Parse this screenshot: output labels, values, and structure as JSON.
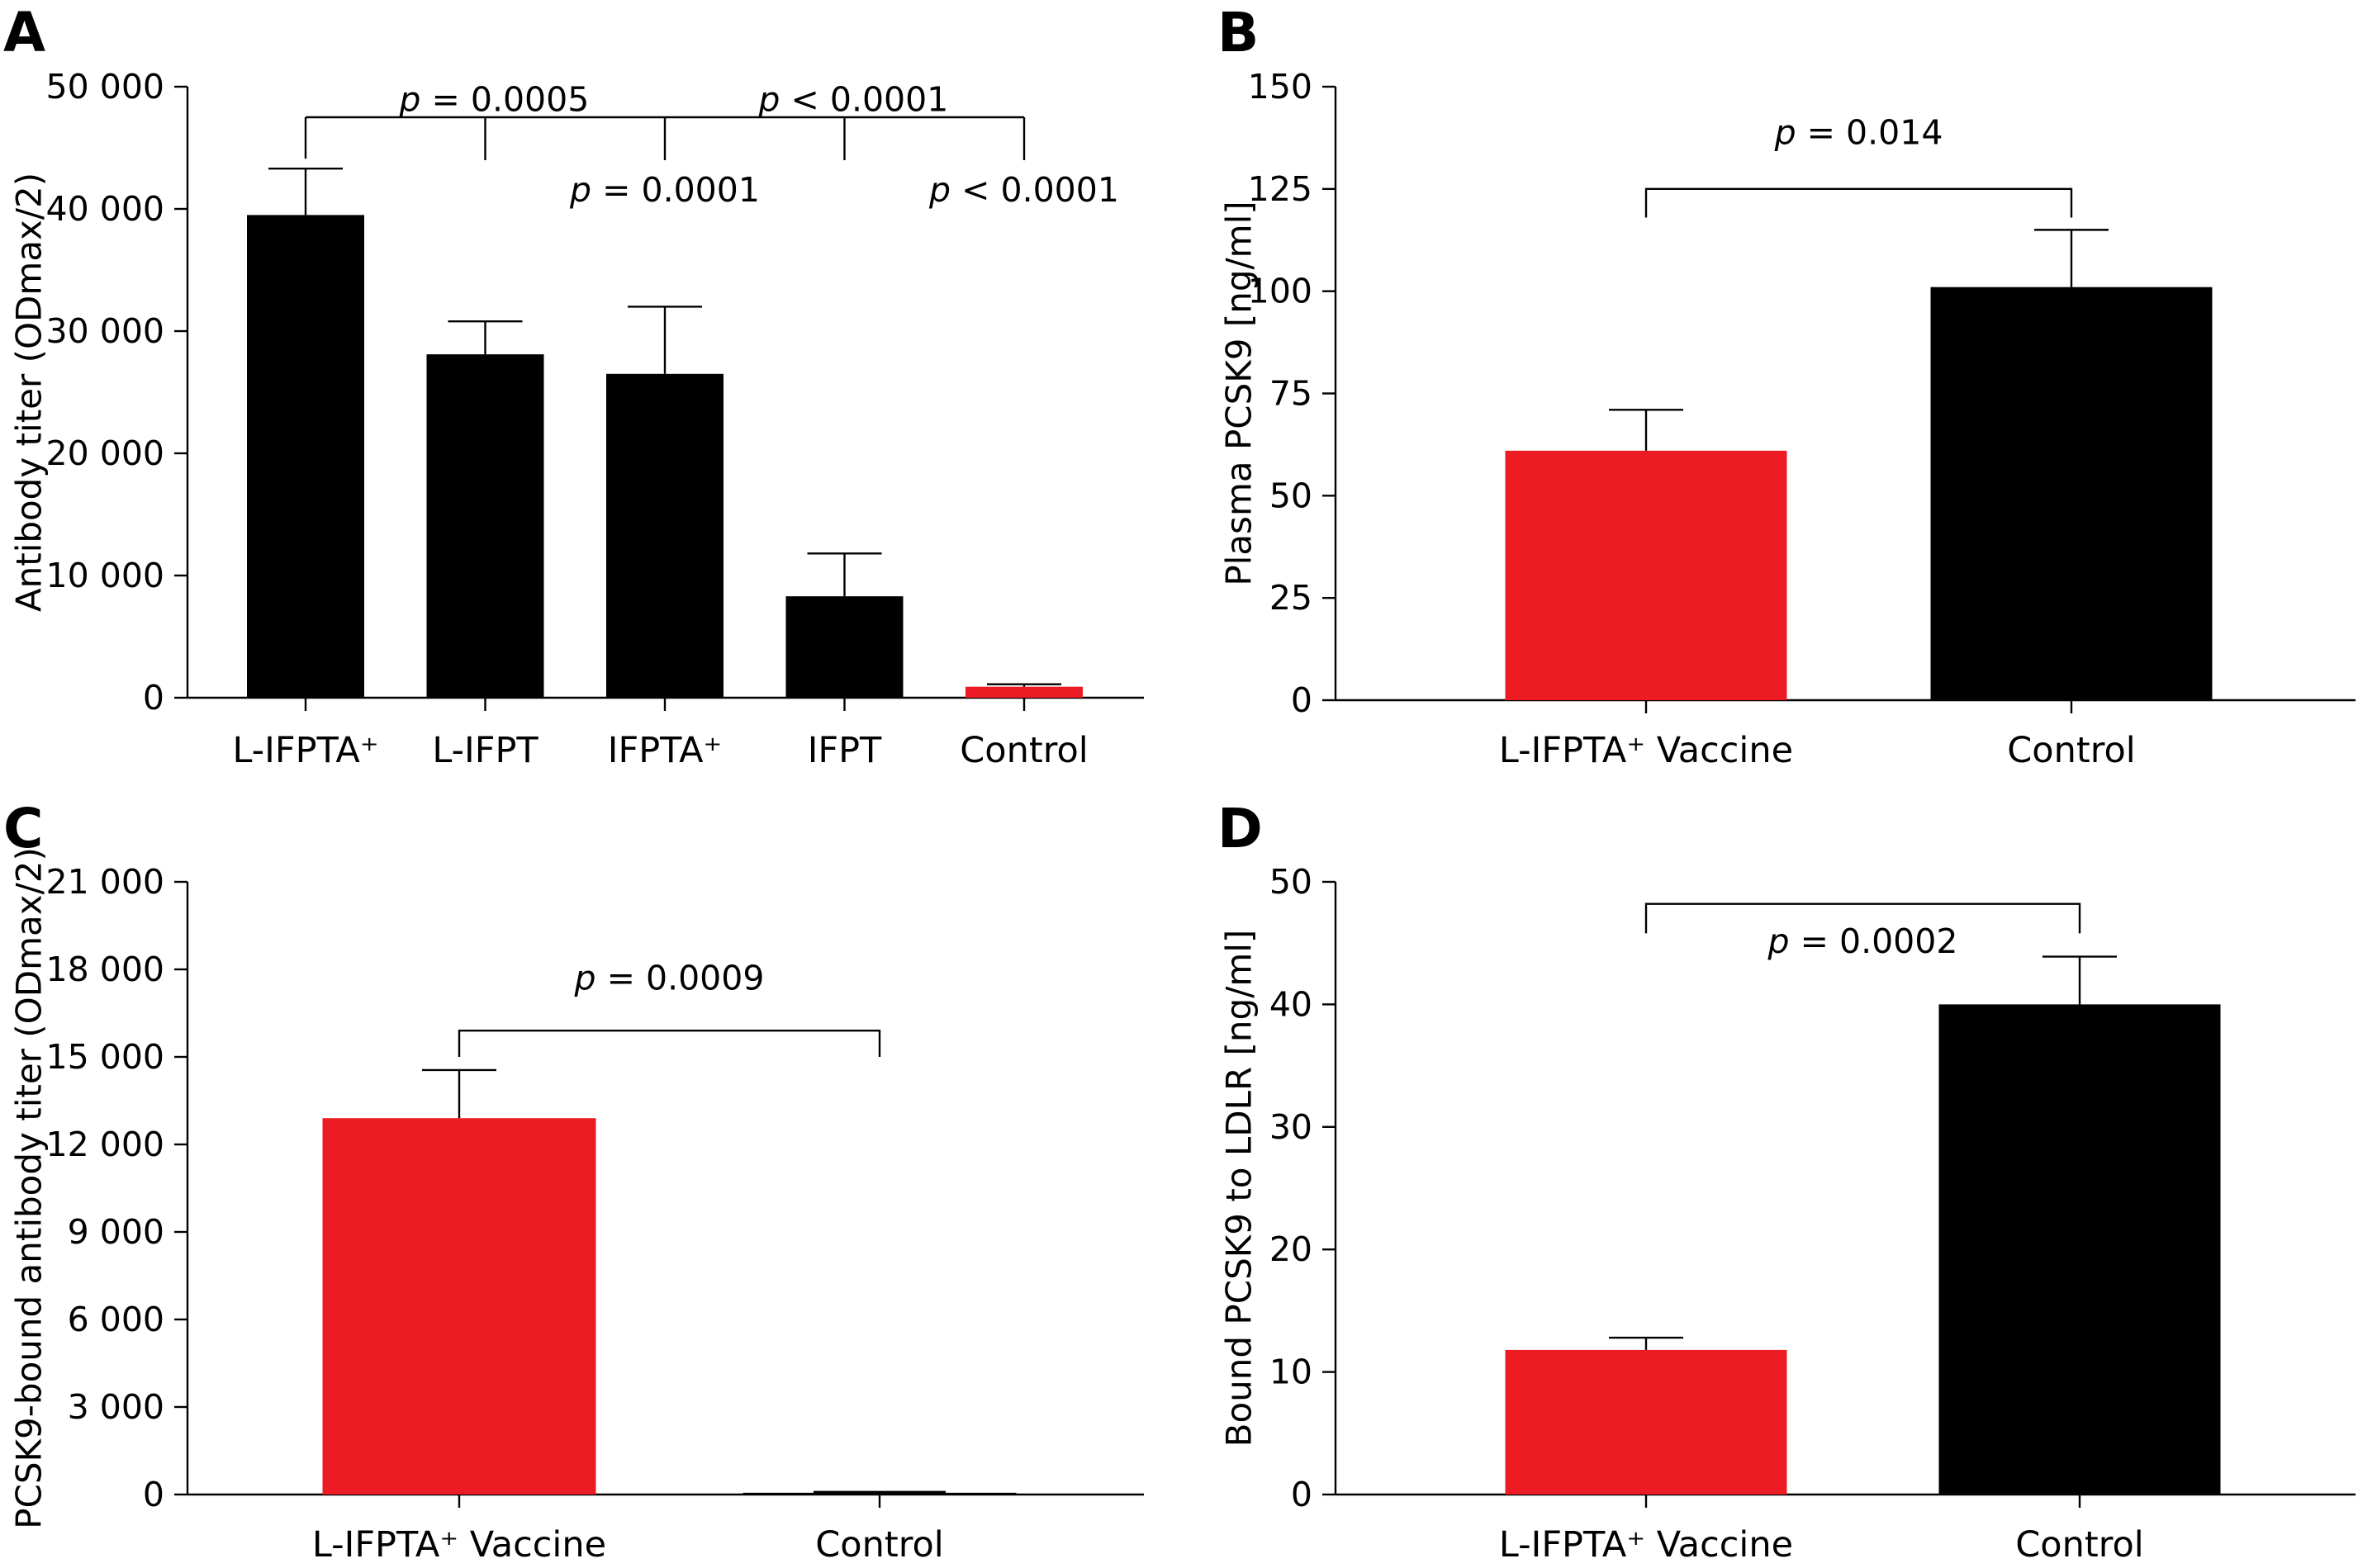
{
  "chart_data": [
    {
      "panel": "A",
      "type": "bar",
      "categories": [
        "L-IFPTA⁺",
        "L-IFPT",
        "IFPTA⁺",
        "IFPT",
        "Control"
      ],
      "values": [
        39500,
        28100,
        26500,
        8300,
        900
      ],
      "errors": [
        3800,
        2700,
        5500,
        3500,
        200
      ],
      "colors": [
        "#000000",
        "#000000",
        "#000000",
        "#000000",
        "#ed1c24"
      ],
      "ylabel": "Antibody titer (ODmax/2)",
      "ylim": [
        0,
        50000
      ],
      "yticks": [
        0,
        10000,
        20000,
        30000,
        40000,
        50000
      ],
      "ytick_labels": [
        "0",
        "10 000",
        "20 000",
        "30 000",
        "40 000",
        "50 000"
      ],
      "brackets": [
        {
          "level": 47500,
          "from": 0,
          "drops": [
            0,
            1,
            2,
            3,
            4
          ]
        }
      ],
      "pvalues": [
        {
          "p": "p",
          "rest": " = 0.0005",
          "x": 1.05,
          "y": 48000
        },
        {
          "p": "p",
          "rest": " < 0.0001",
          "x": 3.05,
          "y": 48000
        },
        {
          "p": "p",
          "rest": " = 0.0001",
          "x": 2.0,
          "y": 40600
        },
        {
          "p": "p",
          "rest": " < 0.0001",
          "x": 4.0,
          "y": 40600
        }
      ]
    },
    {
      "panel": "B",
      "type": "bar",
      "categories": [
        "L-IFPTA⁺ Vaccine",
        "Control"
      ],
      "values": [
        61,
        101
      ],
      "errors": [
        10,
        14
      ],
      "colors": [
        "#ed1c24",
        "#000000"
      ],
      "ylabel": "Plasma PCSK9 [ng/ml]",
      "ylim": [
        0,
        150
      ],
      "yticks": [
        0,
        25,
        50,
        75,
        100,
        125,
        150
      ],
      "ytick_labels": [
        "0",
        "25",
        "50",
        "75",
        "100",
        "125",
        "150"
      ],
      "brackets": [
        {
          "level": 125,
          "a": 0,
          "b": 1,
          "drop": 118
        }
      ],
      "pvalues": [
        {
          "p": "p",
          "rest": " = 0.014",
          "x": 0.5,
          "y": 136
        }
      ]
    },
    {
      "panel": "C",
      "type": "bar",
      "categories": [
        "L-IFPTA⁺ Vaccine",
        "Control"
      ],
      "values": [
        12900,
        60
      ],
      "errors": [
        1650,
        0
      ],
      "colors": [
        "#ed1c24",
        "#000000"
      ],
      "ylabel": "PCSK9-bound antibody titer (ODmax/2)",
      "ylim": [
        0,
        21000
      ],
      "yticks": [
        0,
        3000,
        6000,
        9000,
        12000,
        15000,
        18000,
        21000
      ],
      "ytick_labels": [
        "0",
        "3 000",
        "6 000",
        "9 000",
        "12 000",
        "15 000",
        "18 000",
        "21 000"
      ],
      "brackets": [
        {
          "level": 15900,
          "a": 0,
          "b": 1,
          "drop": 15000
        }
      ],
      "pvalues": [
        {
          "p": "p",
          "rest": " = 0.0009",
          "x": 0.5,
          "y": 17300
        }
      ]
    },
    {
      "panel": "D",
      "type": "bar",
      "categories": [
        "L-IFPTA⁺ Vaccine",
        "Control"
      ],
      "values": [
        11.8,
        40
      ],
      "errors": [
        1.0,
        3.9
      ],
      "colors": [
        "#ed1c24",
        "#000000"
      ],
      "ylabel": "Bound PCSK9 to LDLR [ng/ml]",
      "ylim": [
        0,
        50
      ],
      "yticks": [
        0,
        10,
        20,
        30,
        40,
        50
      ],
      "ytick_labels": [
        "0",
        "10",
        "20",
        "30",
        "40",
        "50"
      ],
      "brackets": [
        {
          "level": 48.2,
          "a": 0,
          "b": 1,
          "drop": 45.8
        }
      ],
      "pvalues": [
        {
          "p": "p",
          "rest": " = 0.0002",
          "x": 0.5,
          "y": 44.2
        }
      ]
    }
  ]
}
